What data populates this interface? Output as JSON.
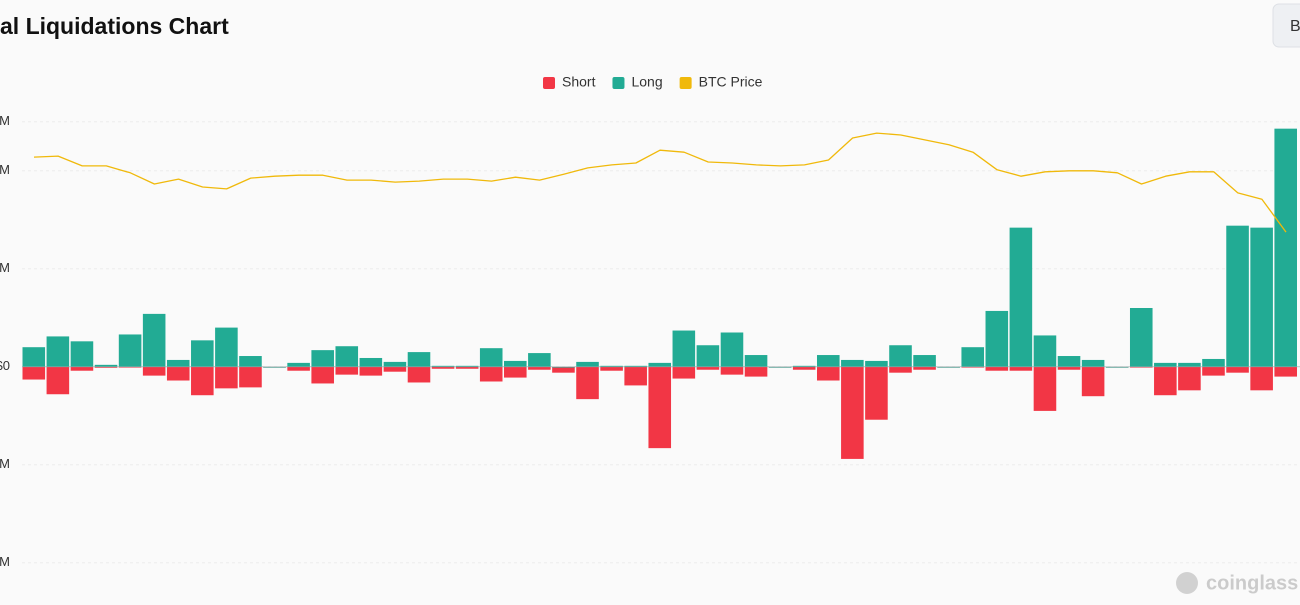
{
  "chart_data": {
    "type": "bar",
    "title": "al Liquidations Chart",
    "button": "B",
    "watermark": "coinglass",
    "categories": [
      null,
      null,
      null,
      null,
      null,
      null,
      null,
      null,
      null,
      null,
      null,
      null,
      null,
      null,
      null,
      null,
      null,
      null,
      null,
      null,
      null,
      null,
      null,
      null,
      null,
      null,
      null,
      null,
      null,
      null,
      null,
      null,
      null,
      null,
      null,
      null,
      null,
      null,
      null,
      null,
      null,
      null,
      null,
      null,
      null,
      null,
      null,
      null,
      null,
      null,
      null,
      null,
      null
    ],
    "ylim": [
      -240,
      260
    ],
    "yticks": [
      {
        "value": -200,
        "label": "M"
      },
      {
        "value": -100,
        "label": "M"
      },
      {
        "value": 0,
        "label": "$0"
      },
      {
        "value": 100,
        "label": "M"
      },
      {
        "value": 200,
        "label": "M"
      },
      {
        "value": 250,
        "label": "M"
      }
    ],
    "y2lim": [
      0,
      100
    ],
    "grid": true,
    "legend": "top",
    "series": [
      {
        "name": "Short",
        "color": "#f23645",
        "values": [
          -13,
          -28,
          -4,
          -1,
          0,
          -9,
          -14,
          -29,
          -22,
          -21,
          0,
          -4,
          -17,
          -8,
          -9,
          -5,
          -16,
          -2,
          -2,
          -15,
          -11,
          -3,
          -6,
          -33,
          -4,
          -19,
          -83,
          -12,
          -3,
          -8,
          -10,
          0,
          -3,
          -14,
          -94,
          -54,
          -6,
          -3,
          0,
          0,
          -4,
          -4,
          -45,
          -3,
          -30,
          0,
          0,
          -29,
          -24,
          -9,
          -6,
          -24,
          -10
        ]
      },
      {
        "name": "Long",
        "color": "#22ab94",
        "values": [
          20,
          31,
          26,
          2,
          33,
          54,
          7,
          27,
          40,
          11,
          0,
          4,
          17,
          21,
          9,
          5,
          15,
          1,
          1,
          19,
          6,
          14,
          0,
          5,
          1,
          1,
          4,
          37,
          22,
          35,
          12,
          0,
          1,
          12,
          7,
          6,
          22,
          12,
          0,
          20,
          57,
          142,
          32,
          11,
          7,
          0,
          60,
          4,
          4,
          8,
          144,
          142,
          243
        ]
      },
      {
        "name": "BTC Price",
        "color": "#f0b90b",
        "type": "line",
        "axis": "y2",
        "values": [
          90.8,
          91.0,
          89.0,
          89.0,
          87.6,
          85.3,
          86.3,
          84.7,
          84.3,
          86.5,
          86.9,
          87.1,
          87.1,
          86.1,
          86.1,
          85.7,
          85.9,
          86.3,
          86.3,
          85.9,
          86.7,
          86.1,
          87.3,
          88.6,
          89.2,
          89.6,
          92.2,
          91.8,
          89.8,
          89.6,
          89.2,
          89.0,
          89.2,
          90.2,
          94.7,
          95.7,
          95.3,
          94.3,
          93.3,
          91.8,
          88.2,
          86.9,
          87.8,
          88.0,
          88.0,
          87.6,
          85.3,
          86.9,
          87.8,
          87.8,
          83.5,
          82.2,
          75.5
        ]
      }
    ]
  }
}
